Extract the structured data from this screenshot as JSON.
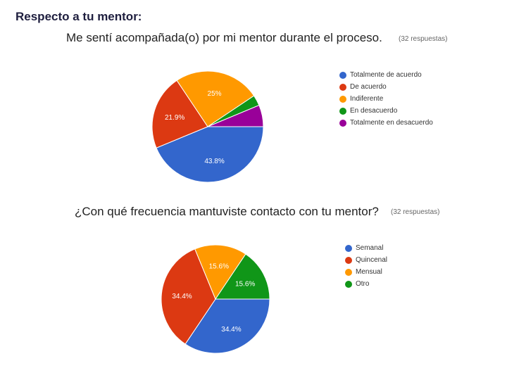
{
  "heading": "Respecto a tu mentor:",
  "charts": [
    {
      "title": "Me sentí acompañada(o) por mi mentor durante el proceso.",
      "responses": "(32 respuestas)"
    },
    {
      "title": "¿Con qué frecuencia mantuviste contacto con tu mentor?",
      "responses": "(32 respuestas)"
    }
  ],
  "chart_data": [
    {
      "type": "pie",
      "title": "Me sentí acompañada(o) por mi mentor durante el proceso.",
      "legend_position": "right",
      "slices": [
        {
          "label": "Totalmente de acuerdo",
          "value": 43.8,
          "display": "43.8%",
          "color": "#3366cc"
        },
        {
          "label": "De acuerdo",
          "value": 21.9,
          "display": "21.9%",
          "color": "#dc3912"
        },
        {
          "label": "Indiferente",
          "value": 25,
          "display": "25%",
          "color": "#ff9900"
        },
        {
          "label": "En desacuerdo",
          "value": 3.1,
          "display": "",
          "color": "#109618"
        },
        {
          "label": "Totalmente en desacuerdo",
          "value": 6.3,
          "display": "",
          "color": "#990099"
        }
      ]
    },
    {
      "type": "pie",
      "title": "¿Con qué frecuencia mantuviste contacto con tu mentor?",
      "legend_position": "right",
      "slices": [
        {
          "label": "Semanal",
          "value": 34.4,
          "display": "34.4%",
          "color": "#3366cc"
        },
        {
          "label": "Quincenal",
          "value": 34.4,
          "display": "34.4%",
          "color": "#dc3912"
        },
        {
          "label": "Mensual",
          "value": 15.6,
          "display": "15.6%",
          "color": "#ff9900"
        },
        {
          "label": "Otro",
          "value": 15.6,
          "display": "15.6%",
          "color": "#109618"
        }
      ]
    }
  ]
}
